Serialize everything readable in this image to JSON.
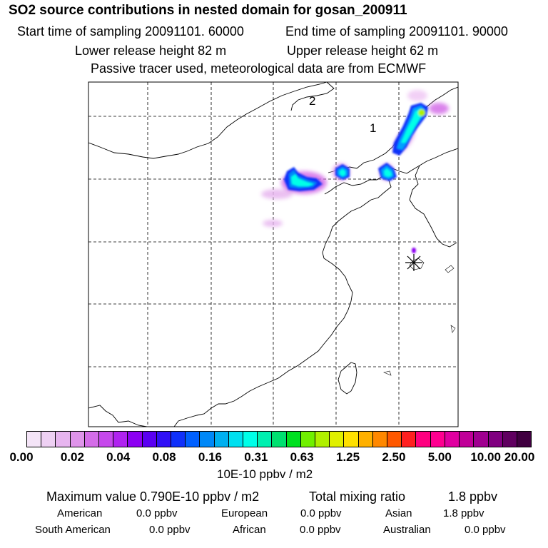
{
  "header": {
    "title": "SO2 source contributions in nested domain for gosan_200911",
    "start_time": "Start time of sampling 20091101. 60000",
    "end_time": "End time of sampling 20091101. 90000",
    "lower_height": "Lower release height   82 m",
    "upper_height": "Upper release height   62 m",
    "tracer_note": "Passive tracer used, meteorological data are from ECMWF"
  },
  "map": {
    "labels": [
      "2",
      "1"
    ],
    "receptor_icon": "asterisk-receptor-icon"
  },
  "colorbar": {
    "colors": [
      "#f4e4f7",
      "#eed0f3",
      "#e7b5ef",
      "#df94ea",
      "#d46de8",
      "#c648ec",
      "#b023f0",
      "#8c00f2",
      "#5a00f2",
      "#3010f6",
      "#1030fa",
      "#0060ff",
      "#0088f8",
      "#00b0f0",
      "#00e0f0",
      "#00ffe8",
      "#00f0b0",
      "#00e070",
      "#00e020",
      "#70f000",
      "#b0f000",
      "#e0f000",
      "#ffe000",
      "#ffb000",
      "#ff8800",
      "#ff5800",
      "#ff2020",
      "#ff0080",
      "#ff0090",
      "#e000a0",
      "#c00098",
      "#a00090",
      "#800080",
      "#600060",
      "#400040"
    ],
    "tick_labels": [
      "0.00",
      "0.02",
      "0.04",
      "0.08",
      "0.16",
      "0.31",
      "0.63",
      "1.25",
      "2.50",
      "5.00",
      "10.00",
      "20.00"
    ],
    "unit_label": "10E-10 ppbv / m2"
  },
  "summary": {
    "max_value": "Maximum value  0.790E-10 ppbv / m2",
    "total_label": "Total mixing ratio",
    "total_value": "1.8 ppbv",
    "regions": [
      {
        "name": "American",
        "value": "0.0 ppbv"
      },
      {
        "name": "European",
        "value": "0.0 ppbv"
      },
      {
        "name": "Asian",
        "value": "1.8 ppbv"
      },
      {
        "name": "South American",
        "value": "0.0 ppbv"
      },
      {
        "name": "African",
        "value": "0.0 ppbv"
      },
      {
        "name": "Australian",
        "value": "0.0 ppbv"
      }
    ]
  }
}
